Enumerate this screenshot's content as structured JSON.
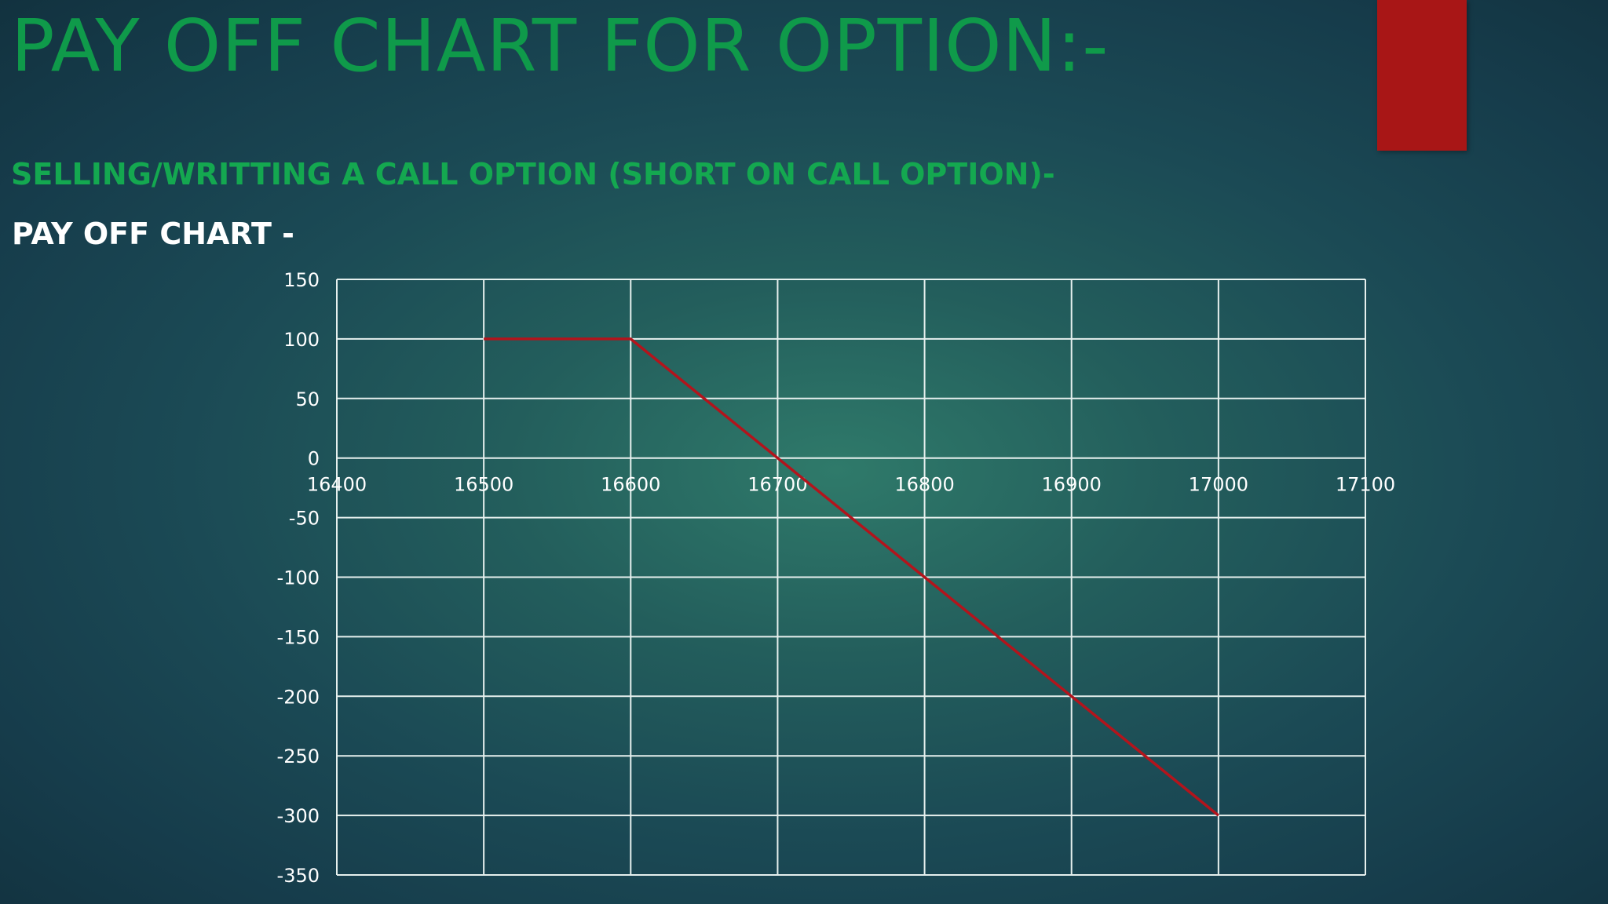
{
  "slide": {
    "title": "PAY OFF CHART FOR OPTION:-",
    "subtitle": "SELLING/WRITTING A CALL OPTION (SHORT ON CALL OPTION)-",
    "section_label": "PAY OFF CHART -"
  },
  "colors": {
    "title": "#0f9a4a",
    "subtitle": "#14a850",
    "accent_bar": "#a81616",
    "series_line": "#b3141c",
    "grid": "#e6f0ee"
  },
  "chart_data": {
    "type": "line",
    "title": "",
    "xlabel": "",
    "ylabel": "",
    "xlim": [
      16400,
      17100
    ],
    "ylim": [
      -350,
      150
    ],
    "x_ticks": [
      16400,
      16500,
      16600,
      16700,
      16800,
      16900,
      17000,
      17100
    ],
    "x_tick_labels": [
      "16400",
      "16500",
      "16600",
      "16700",
      "16800",
      "16900",
      "17000",
      "17100"
    ],
    "y_ticks": [
      150,
      100,
      50,
      0,
      -50,
      -100,
      -150,
      -200,
      -250,
      -300,
      -350
    ],
    "y_tick_labels": [
      "150",
      "100",
      "50",
      "0",
      "-50",
      "-100",
      "-150",
      "-200",
      "-250",
      "-300",
      "-350"
    ],
    "grid": true,
    "legend": "none",
    "series": [
      {
        "x": [
          16500,
          16600,
          16700,
          16800,
          16900,
          17000
        ],
        "values": [
          100,
          100,
          0,
          -100,
          -200,
          -300
        ]
      }
    ]
  }
}
